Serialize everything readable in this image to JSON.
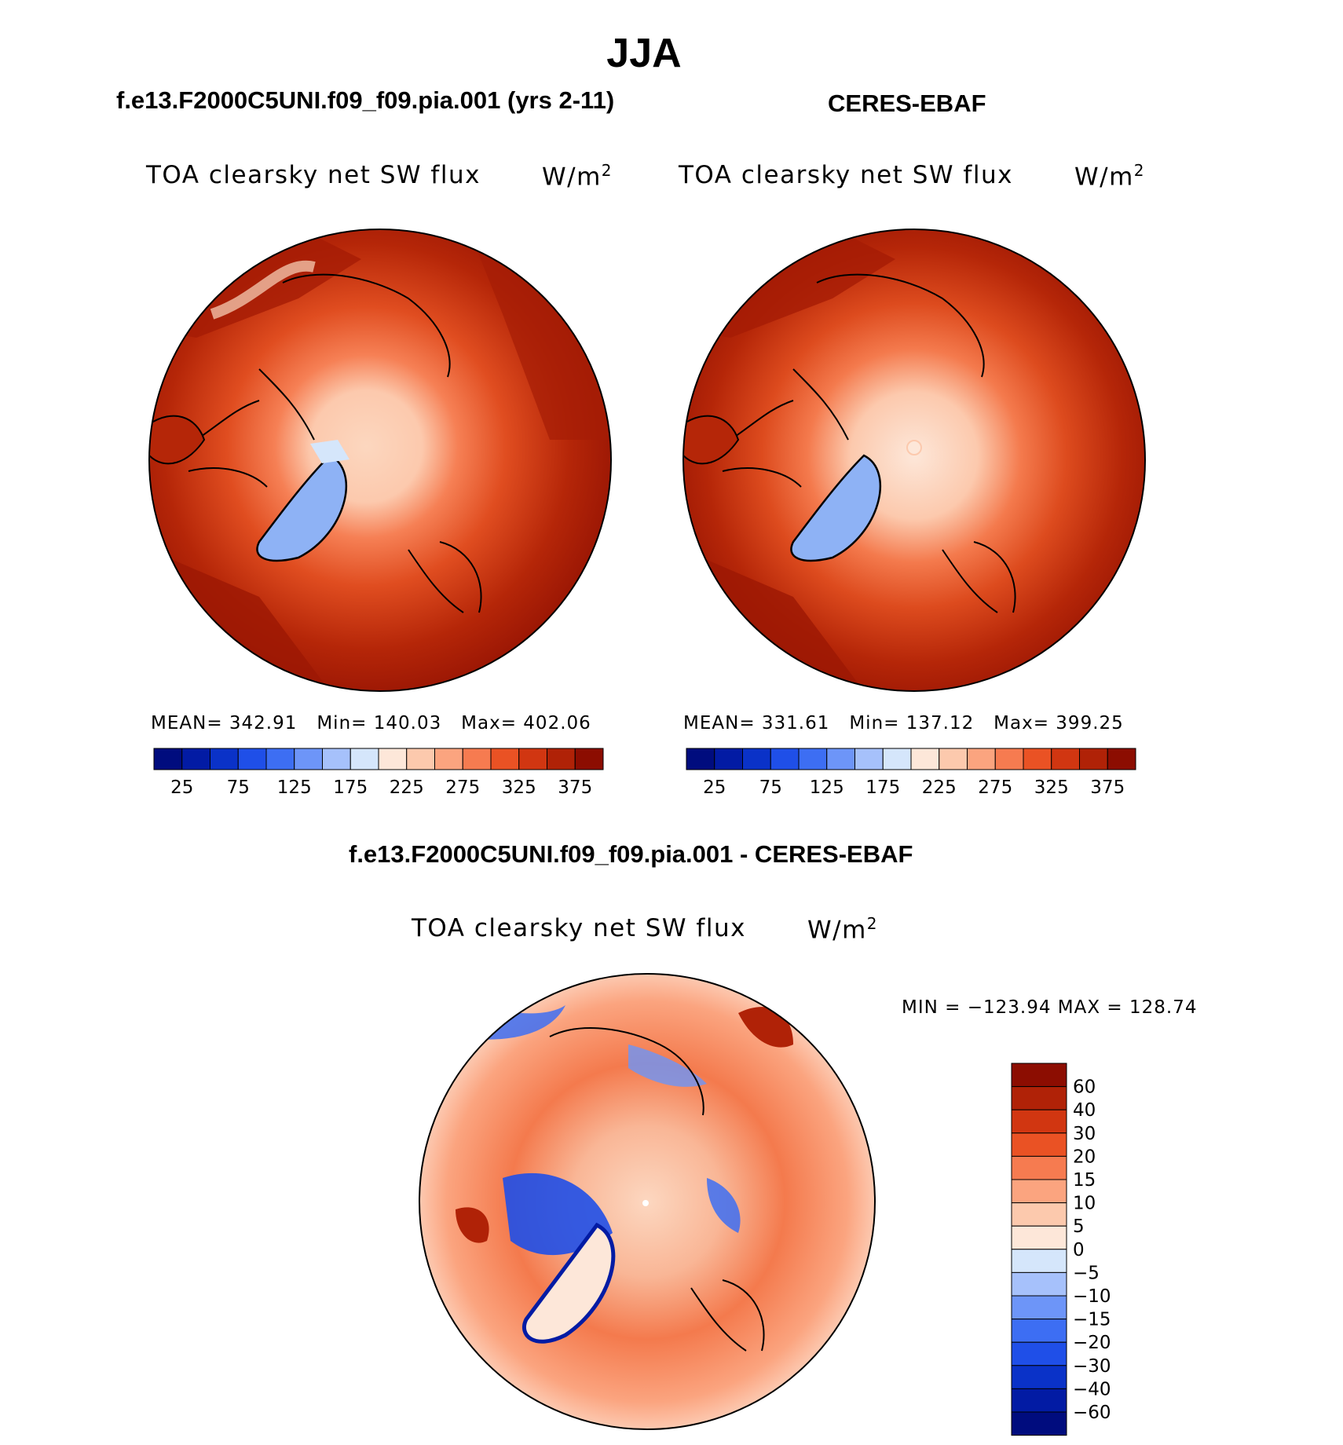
{
  "title": "JJA",
  "panels": [
    {
      "case_label": "f.e13.F2000C5UNI.f09_f09.pia.001 (yrs 2-11)",
      "variable": "TOA clearsky net SW flux",
      "units": "W/m",
      "units_exp": "2",
      "stats": {
        "mean_label": "MEAN=",
        "mean": "342.91",
        "min_label": "Min=",
        "min": "140.03",
        "max_label": "Max=",
        "max": "402.06"
      }
    },
    {
      "case_label": "CERES-EBAF",
      "variable": "TOA clearsky net SW flux",
      "units": "W/m",
      "units_exp": "2",
      "stats": {
        "mean_label": "MEAN=",
        "mean": "331.61",
        "min_label": "Min=",
        "min": "137.12",
        "max_label": "Max=",
        "max": "399.25"
      }
    }
  ],
  "abs_colorbar": {
    "colors": [
      "#000c7e",
      "#021ba4",
      "#0a32c8",
      "#1f4fe8",
      "#3d6ef3",
      "#6d95f8",
      "#a6c1fb",
      "#d5e6fb",
      "#fde7d9",
      "#fcc9ad",
      "#fba47f",
      "#f67b50",
      "#ea5224",
      "#d13611",
      "#b02207",
      "#8c0d01"
    ],
    "ticks": [
      "25",
      "75",
      "125",
      "175",
      "225",
      "275",
      "325",
      "375"
    ]
  },
  "diff": {
    "case_label": "f.e13.F2000C5UNI.f09_f09.pia.001 - CERES-EBAF",
    "variable": "TOA clearsky net SW flux",
    "units": "W/m",
    "units_exp": "2",
    "minmax": "MIN = −123.94 MAX = 128.74",
    "colorbar": {
      "colors": [
        "#8c0d01",
        "#b02207",
        "#d13611",
        "#ea5224",
        "#f67b50",
        "#fba47f",
        "#fcc9ad",
        "#fde7d9",
        "#d5e6fb",
        "#a6c1fb",
        "#6d95f8",
        "#3d6ef3",
        "#1f4fe8",
        "#0a32c8",
        "#021ba4",
        "#000c7e"
      ],
      "ticks": [
        "60",
        "40",
        "30",
        "20",
        "15",
        "10",
        "5",
        "0",
        "−5",
        "−10",
        "−15",
        "−20",
        "−30",
        "−40",
        "−60"
      ]
    }
  },
  "colors": {
    "land_outline": "#000000",
    "ocean_outer": "#a51c05",
    "pole_abs": "#fcd2b8",
    "greenland_abs": "#8eb2f5"
  }
}
